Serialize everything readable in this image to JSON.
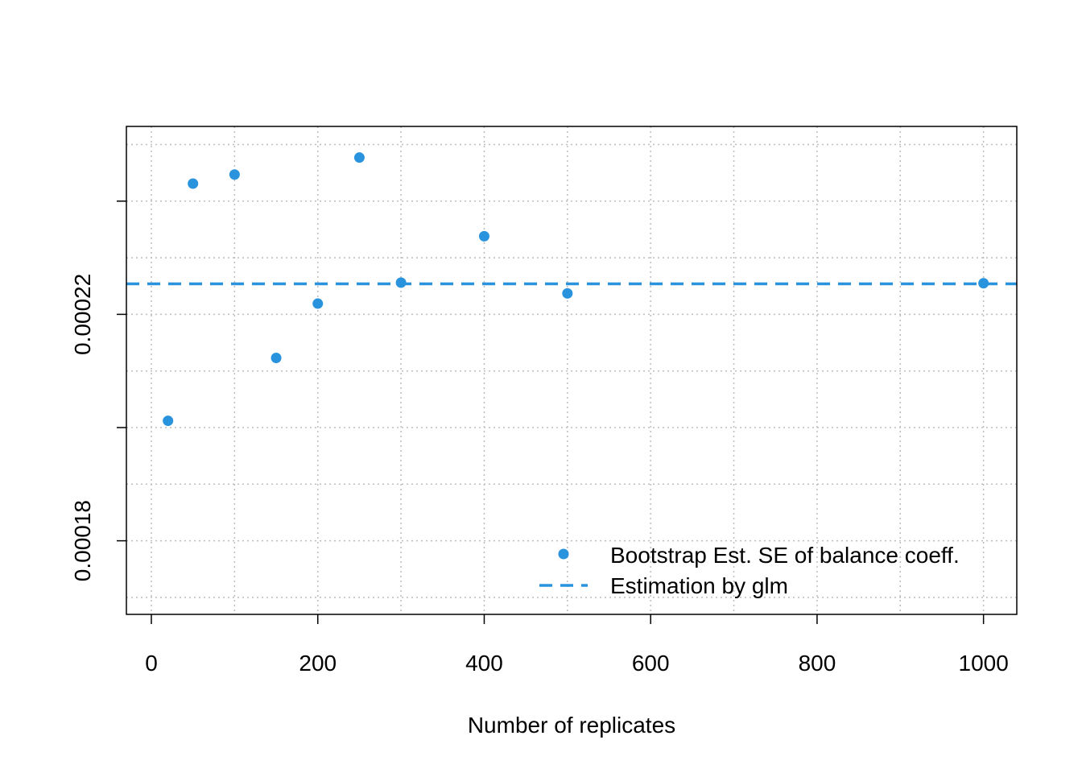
{
  "chart_data": {
    "type": "scatter",
    "xlabel": "Number of replicates",
    "ylabel": "",
    "xlim": [
      -30,
      1040
    ],
    "ylim": [
      0.000167,
      0.0002532
    ],
    "x_ticks": [
      0,
      200,
      400,
      600,
      800,
      1000
    ],
    "x_tick_labels": [
      "0",
      "200",
      "400",
      "600",
      "800",
      "1000"
    ],
    "y_ticks": [
      0.00018,
      0.0002,
      0.00022,
      0.00024
    ],
    "y_tick_labels": [
      "0.00018",
      "",
      "0.00022",
      ""
    ],
    "x_grid": [
      0,
      100,
      200,
      300,
      400,
      500,
      600,
      700,
      800,
      900,
      1000
    ],
    "y_grid": [
      0.00017,
      0.00018,
      0.00019,
      0.0002,
      0.00021,
      0.00022,
      0.00023,
      0.00024,
      0.00025
    ],
    "grid": true,
    "legend_position": "bottom-right",
    "series": [
      {
        "name": "Bootstrap Est. SE of balance coeff.",
        "kind": "points",
        "color": "#2a93dd",
        "x": [
          20,
          50,
          100,
          150,
          200,
          250,
          300,
          400,
          500,
          1000
        ],
        "y": [
          0.0002012,
          0.0002431,
          0.0002447,
          0.0002123,
          0.0002219,
          0.0002477,
          0.0002256,
          0.0002338,
          0.0002237,
          0.0002255
        ]
      },
      {
        "name": "Estimation by glm",
        "kind": "hline",
        "color": "#2a93dd",
        "dash": "dashed",
        "y": 0.0002254
      }
    ]
  }
}
